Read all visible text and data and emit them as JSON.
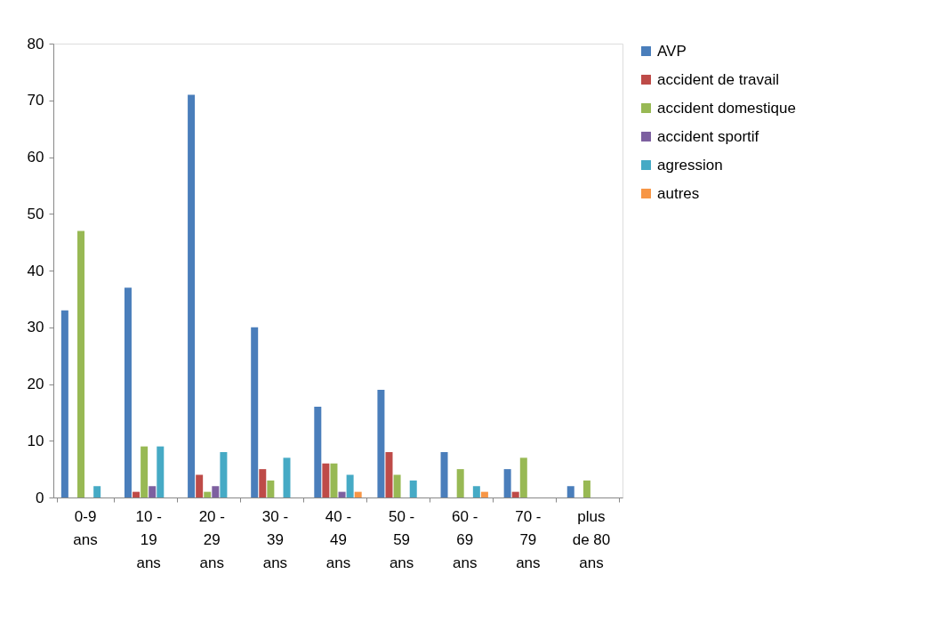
{
  "chart_data": {
    "type": "bar",
    "categories": [
      "0-9\nans",
      "10 -\n19\nans",
      "20 -\n29\nans",
      "30 -\n39\nans",
      "40 -\n49\nans",
      "50 -\n59\nans",
      "60 -\n69\nans",
      "70 -\n79\nans",
      "plus\nde 80\nans"
    ],
    "series": [
      {
        "name": "AVP",
        "color": "#4a7ebb",
        "values": [
          33,
          37,
          71,
          30,
          16,
          19,
          8,
          5,
          2
        ]
      },
      {
        "name": "accident de travail",
        "color": "#be4b48",
        "values": [
          0,
          1,
          4,
          5,
          6,
          8,
          0,
          1,
          0
        ]
      },
      {
        "name": "accident domestique",
        "color": "#98b954",
        "values": [
          47,
          9,
          1,
          3,
          6,
          4,
          5,
          7,
          3
        ]
      },
      {
        "name": "accident sportif",
        "color": "#7d60a0",
        "values": [
          0,
          2,
          2,
          0,
          1,
          0,
          0,
          0,
          0
        ]
      },
      {
        "name": "agression",
        "color": "#46aac5",
        "values": [
          2,
          9,
          8,
          7,
          4,
          3,
          2,
          0,
          0
        ]
      },
      {
        "name": "autres",
        "color": "#f79646",
        "values": [
          0,
          0,
          0,
          0,
          1,
          0,
          1,
          0,
          0
        ]
      }
    ],
    "ylim": [
      0,
      80
    ],
    "yticks": [
      0,
      10,
      20,
      30,
      40,
      50,
      60,
      70,
      80
    ],
    "grid": false,
    "legend": "right"
  }
}
